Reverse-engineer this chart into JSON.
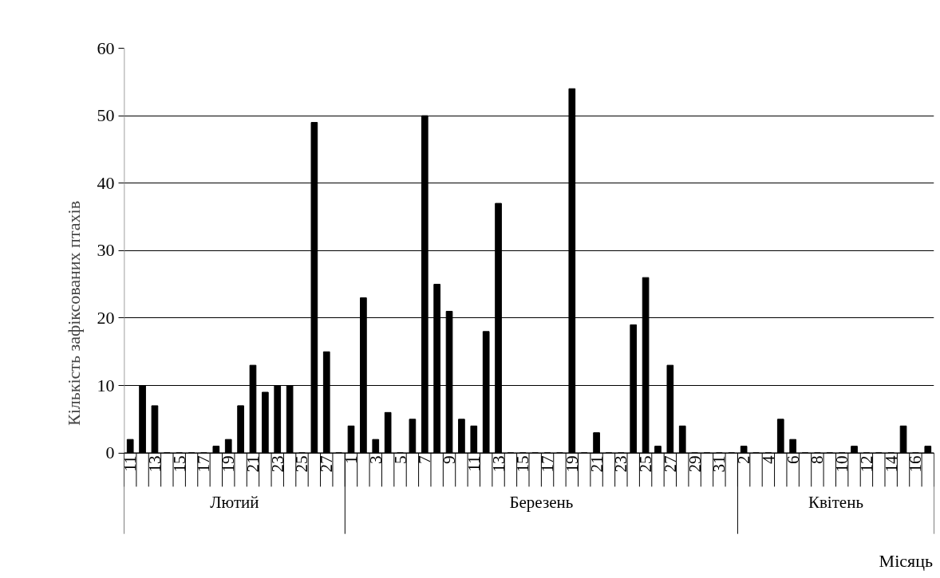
{
  "chart_data": {
    "type": "bar",
    "ylabel": "Кількість зафіксованих птахів",
    "categories": [
      "11",
      null,
      "13",
      null,
      "15",
      null,
      "17",
      null,
      "19",
      null,
      "21",
      null,
      "23",
      null,
      "25",
      null,
      "27",
      null,
      "1",
      null,
      "3",
      null,
      "5",
      null,
      "7",
      null,
      "9",
      null,
      "11",
      null,
      "13",
      null,
      "15",
      null,
      "17",
      null,
      "19",
      null,
      "21",
      null,
      "23",
      null,
      "25",
      null,
      "27",
      null,
      "29",
      null,
      "31",
      null,
      "2",
      null,
      "4",
      null,
      "6",
      null,
      "8",
      null,
      "10",
      null,
      "12",
      null,
      "14",
      null,
      "16",
      null
    ],
    "values": [
      2,
      10,
      7,
      0,
      0,
      0,
      0,
      1,
      2,
      7,
      13,
      9,
      10,
      10,
      0,
      49,
      15,
      0,
      4,
      23,
      2,
      6,
      0,
      5,
      50,
      25,
      21,
      5,
      4,
      18,
      37,
      0,
      0,
      0,
      0,
      0,
      54,
      0,
      3,
      0,
      0,
      19,
      26,
      1,
      13,
      4,
      0,
      0,
      0,
      0,
      1,
      0,
      0,
      5,
      2,
      0,
      0,
      0,
      0,
      1,
      0,
      0,
      0,
      4,
      0,
      1
    ],
    "color": "#000000",
    "annotations": [
      "Лютий",
      "Березень",
      "Квітень",
      "Місяць"
    ],
    "ylim": [
      0,
      60
    ],
    "yticks": [
      0,
      10,
      20,
      30,
      40,
      50,
      60
    ],
    "grid": "y"
  }
}
